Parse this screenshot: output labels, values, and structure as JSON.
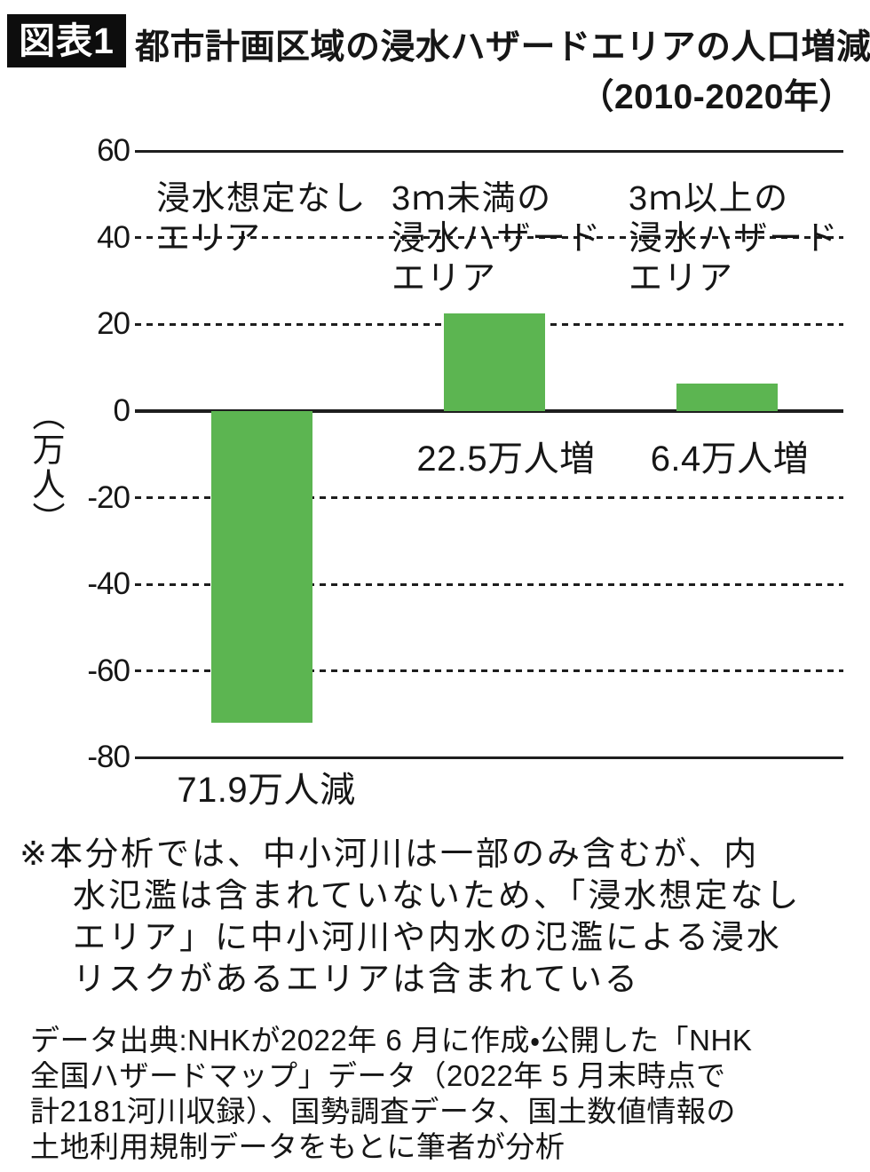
{
  "header": {
    "badge": "図表1",
    "title_line1": "都市計画区域の浸水ハザードエリアの人口増減",
    "title_line2": "（2010-2020年）"
  },
  "chart_data": {
    "type": "bar",
    "title": "都市計画区域の浸水ハザードエリアの人口増減（2010-2020年）",
    "ylabel": "（万人）",
    "unit": "万人",
    "ylim": [
      -80,
      60
    ],
    "ytick_interval": 20,
    "grid": "horizontal dashed, solid at 60 / 0 / -80",
    "legend": "none",
    "bar_color": "#5cb551",
    "categories": [
      "浸水想定なしエリア",
      "3ｍ未満の浸水ハザードエリア",
      "3ｍ以上の浸水ハザードエリア"
    ],
    "category_display": [
      "浸水想定なし\nエリア",
      "3ｍ未満の\n浸水ハザード\nエリア",
      "3ｍ以上の\n浸水ハザード\nエリア"
    ],
    "values": [
      -71.9,
      22.5,
      6.4
    ],
    "value_labels": [
      "71.9万人減",
      "22.5万人増",
      "6.4万人増"
    ],
    "yticks": [
      {
        "value": 60,
        "label": "60",
        "line": "solid"
      },
      {
        "value": 40,
        "label": "40",
        "line": "dashed"
      },
      {
        "value": 20,
        "label": "20",
        "line": "dashed"
      },
      {
        "value": 0,
        "label": "0",
        "line": "solid"
      },
      {
        "value": -20,
        "label": "-20",
        "line": "dashed"
      },
      {
        "value": -40,
        "label": "-40",
        "line": "dashed"
      },
      {
        "value": -60,
        "label": "-60",
        "line": "dashed"
      },
      {
        "value": -80,
        "label": "-80",
        "line": "solid"
      }
    ]
  },
  "notes": {
    "analysis_note": "※本分析では、中小河川は一部のみ含むが、内\n水氾濫は含まれていないため、「浸水想定なし\nエリア」に中小河川や内水の氾濫による浸水\nリスクがあるエリアは含まれている",
    "source": "データ出典:NHKが2022年 6 月に作成・公開した「NHK\n全国ハザードマップ」データ（2022年 5 月末時点で\n計2181河川収録）、国勢調査データ、国土数値情報の\n土地利用規制データをもとに筆者が分析"
  }
}
